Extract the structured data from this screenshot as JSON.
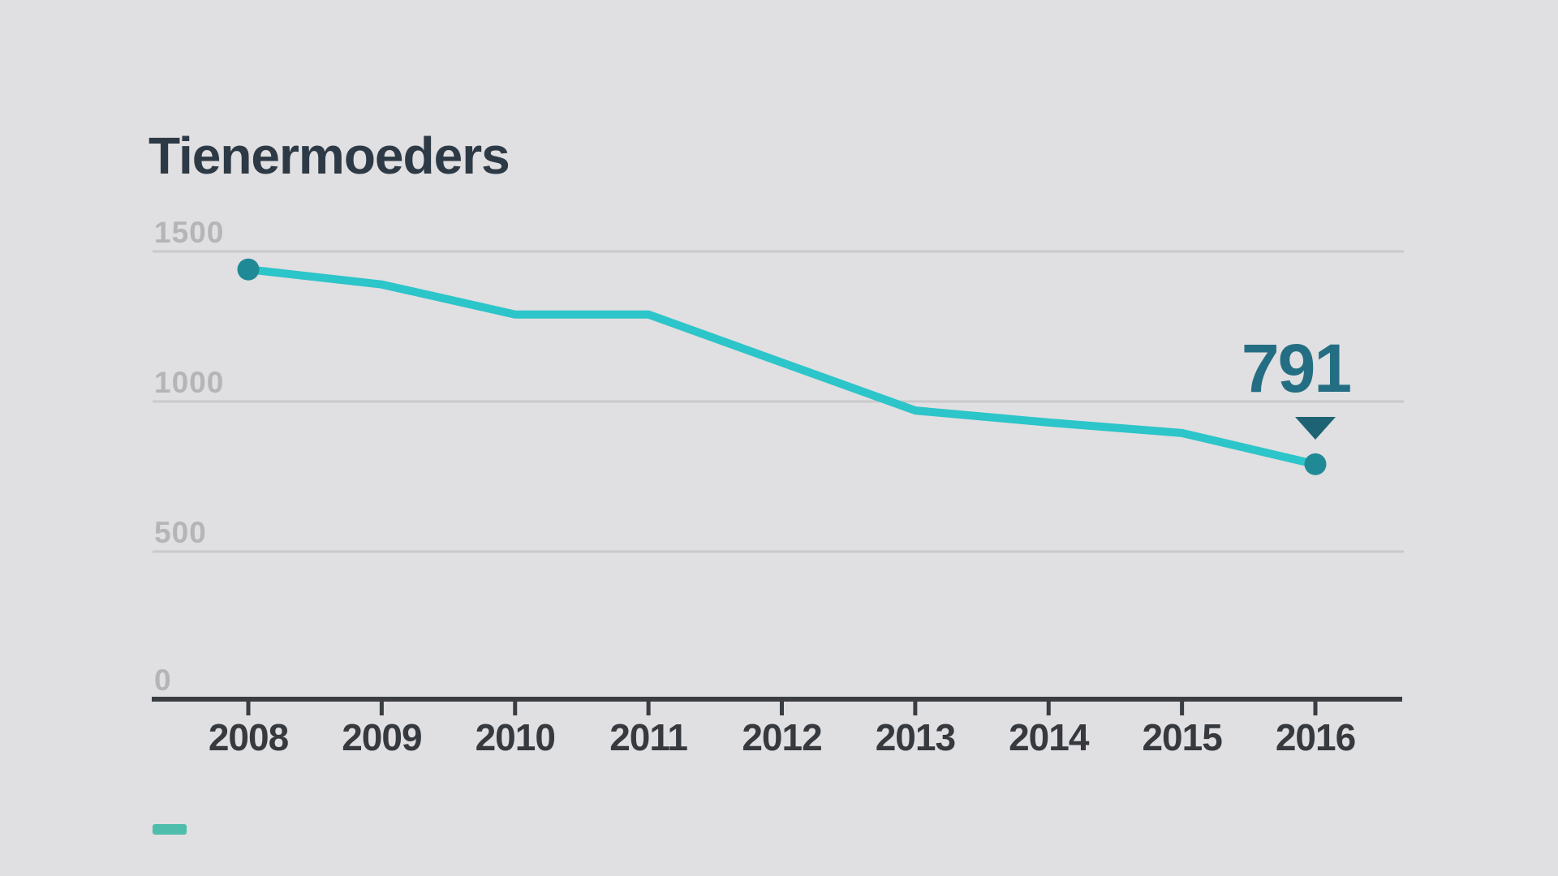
{
  "page": {
    "background_color": "#e0dfe1"
  },
  "chart_data": {
    "type": "line",
    "title": "Tienermoeders",
    "categories": [
      "2008",
      "2009",
      "2010",
      "2011",
      "2012",
      "2013",
      "2014",
      "2015",
      "2016"
    ],
    "series": [
      {
        "name": "tienermoeders",
        "values": [
          1440,
          1390,
          1290,
          1290,
          1130,
          970,
          930,
          895,
          791
        ],
        "color": "#2cc5c9"
      }
    ],
    "xlabel": "",
    "ylabel": "",
    "ylim": [
      0,
      1500
    ],
    "yticks": [
      1500,
      1000,
      500,
      0
    ],
    "grid": "horizontal",
    "grid_color": "#c9c8cb",
    "axis_color": "#3a3e43",
    "x_tick_label_color": "#36393e",
    "y_tick_label_color": "#b5b4b7",
    "point_markers": {
      "positions": "first-and-last",
      "color": "#1f8a96"
    },
    "end_annotation": {
      "text": "791",
      "text_color": "#246e84",
      "marker": "triangle-down",
      "marker_color": "#1e6374"
    },
    "legend": {
      "position": "bottom-left",
      "swatch_color": "#4fbdac",
      "label": ""
    }
  }
}
